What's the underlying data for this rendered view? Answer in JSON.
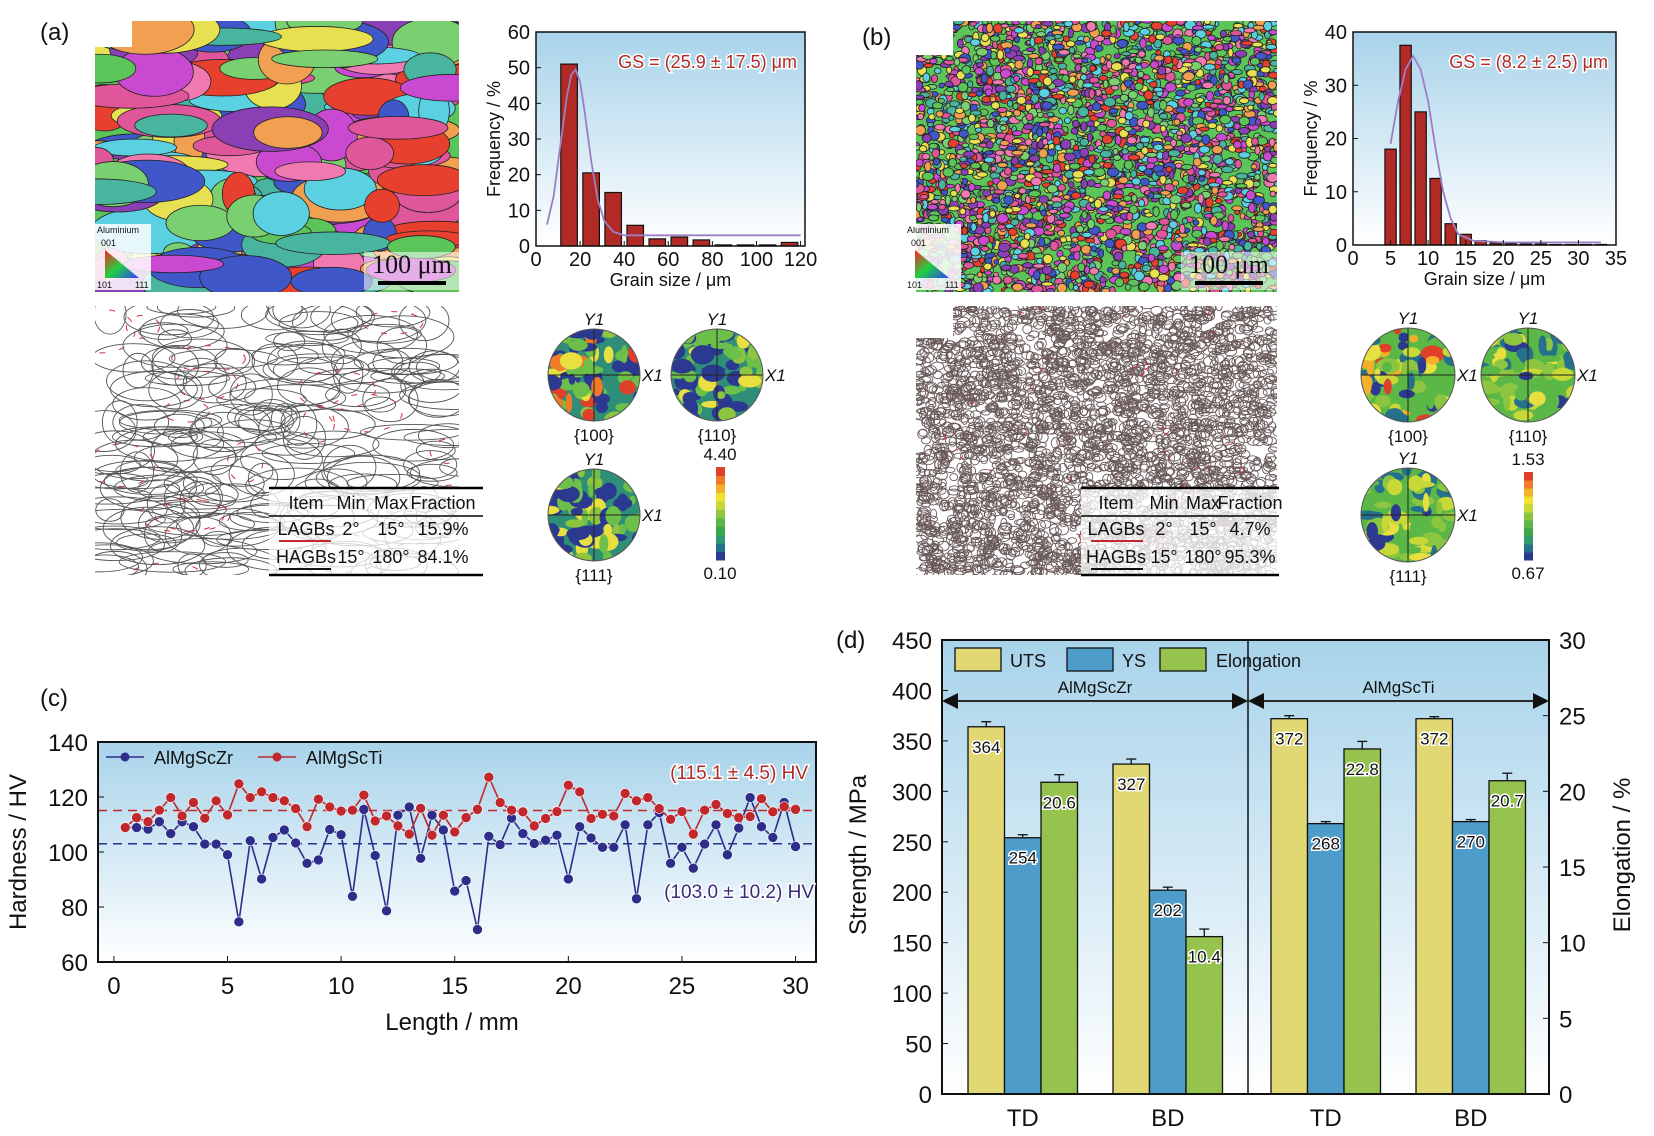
{
  "panels": {
    "a": {
      "label": "(a)",
      "ipf_legend": {
        "title": "Aluminium",
        "corners": [
          "001",
          "101",
          "111"
        ]
      },
      "scale_bar": "100 μm",
      "table": {
        "headers": [
          "Item",
          "Min",
          "Max",
          "Fraction"
        ],
        "rows": [
          [
            "LAGBs",
            "2°",
            "15°",
            "15.9%"
          ],
          [
            "HAGBs",
            "15°",
            "180°",
            "84.1%"
          ]
        ]
      },
      "pole_figures": [
        {
          "label": "{100}"
        },
        {
          "label": "{110}"
        },
        {
          "label": "{111}"
        }
      ],
      "pole_axes": {
        "y": "Y1",
        "x": "X1"
      },
      "colorbar": {
        "max": "4.40",
        "min": "0.10"
      }
    },
    "b": {
      "label": "(b)",
      "ipf_legend": {
        "title": "Aluminium",
        "corners": [
          "001",
          "101",
          "111"
        ]
      },
      "scale_bar": "100 μm",
      "table": {
        "headers": [
          "Item",
          "Min",
          "Max",
          "Fraction"
        ],
        "rows": [
          [
            "LAGBs",
            "2°",
            "15°",
            "4.7%"
          ],
          [
            "HAGBs",
            "15°",
            "180°",
            "95.3%"
          ]
        ]
      },
      "pole_figures": [
        {
          "label": "{100}"
        },
        {
          "label": "{110}"
        },
        {
          "label": "{111}"
        }
      ],
      "pole_axes": {
        "y": "Y1",
        "x": "X1"
      },
      "colorbar": {
        "max": "1.53",
        "min": "0.67"
      }
    },
    "c": {
      "label": "(c)"
    },
    "d": {
      "label": "(d)"
    }
  },
  "colors": {
    "lagb_line": "#c0282d",
    "hagb_line": "#111111",
    "bg_top": "#a8d3ea",
    "bg_bottom": "#ffffff",
    "colorbar": [
      "#2b3990",
      "#25708a",
      "#2e9a6e",
      "#3aa84a",
      "#5cb846",
      "#8cc640",
      "#c8d838",
      "#f0e030",
      "#f5b02a",
      "#f07a28",
      "#e0402a"
    ]
  },
  "chart_data": [
    {
      "type": "bar",
      "panel": "a",
      "title": "",
      "xlabel": "Grain size / μm",
      "ylabel": "Frequency / %",
      "xlim": [
        0,
        122
      ],
      "ylim": [
        0,
        60
      ],
      "xticks": [
        0,
        20,
        40,
        60,
        80,
        100,
        120
      ],
      "yticks": [
        0,
        10,
        20,
        30,
        40,
        50,
        60
      ],
      "x": [
        15,
        25,
        35,
        45,
        55,
        65,
        75,
        85,
        95,
        105,
        115
      ],
      "values": [
        51,
        20.5,
        15,
        5.8,
        2,
        2.5,
        1.7,
        0.3,
        0.3,
        0.3,
        1.0
      ],
      "bin_width": 7.5,
      "fit_curve": {
        "x": [
          5,
          8,
          11,
          14,
          16,
          18,
          20,
          22,
          25,
          28,
          31,
          35,
          40,
          60,
          80,
          100,
          120
        ],
        "y": [
          6,
          14,
          28,
          42,
          48,
          49.5,
          46,
          38,
          24,
          13,
          7,
          4,
          3,
          3,
          3,
          3,
          3
        ]
      },
      "annotation": "GS = (25.9 ± 17.5) μm",
      "bar_color": "#b22a25",
      "curve_color": "#9b7fc4",
      "annotation_color": "#b22a25"
    },
    {
      "type": "bar",
      "panel": "b",
      "title": "",
      "xlabel": "Grain size / μm",
      "ylabel": "Frequency / %",
      "xlim": [
        0,
        35
      ],
      "ylim": [
        0,
        40
      ],
      "xticks": [
        0,
        5,
        10,
        15,
        20,
        25,
        30,
        35
      ],
      "yticks": [
        0,
        10,
        20,
        30,
        40
      ],
      "x": [
        5,
        7,
        9,
        11,
        13,
        15,
        17,
        19,
        21,
        23,
        25,
        27,
        29,
        31,
        33
      ],
      "values": [
        18,
        37.5,
        25,
        12.5,
        4,
        2,
        0.8,
        0.4,
        0.3,
        0.2,
        0.2,
        0.1,
        0.1,
        0.1,
        0.1
      ],
      "bin_width": 1.5,
      "fit_curve": {
        "x": [
          5,
          6,
          7,
          8,
          9,
          10,
          11,
          12,
          13,
          14,
          16,
          20,
          25,
          33
        ],
        "y": [
          19,
          27,
          33,
          35.5,
          33,
          27,
          18,
          10,
          5,
          2,
          0.8,
          0.5,
          0.5,
          0.5
        ]
      },
      "annotation": "GS = (8.2 ± 2.5) μm",
      "bar_color": "#b22a25",
      "curve_color": "#9b7fc4",
      "annotation_color": "#b22a25"
    },
    {
      "type": "line",
      "panel": "c",
      "title": "",
      "xlabel": "Length / mm",
      "ylabel": "Hardness / HV",
      "xlim": [
        -0.7,
        30.9
      ],
      "ylim": [
        60,
        140
      ],
      "xticks": [
        0,
        5,
        10,
        15,
        20,
        25,
        30
      ],
      "yticks": [
        60,
        80,
        100,
        120,
        140
      ],
      "legend": "top-left",
      "x": [
        0.5,
        1,
        1.5,
        2,
        2.5,
        3,
        3.5,
        4,
        4.5,
        5,
        5.5,
        6,
        6.5,
        7,
        7.5,
        8,
        8.5,
        9,
        9.5,
        10,
        10.5,
        11,
        11.5,
        12,
        12.5,
        13,
        13.5,
        14,
        14.5,
        15,
        15.5,
        16,
        16.5,
        17,
        17.5,
        18,
        18.5,
        19,
        19.5,
        20,
        20.5,
        21,
        21.5,
        22,
        22.5,
        23,
        23.5,
        24,
        24.5,
        25,
        25.5,
        26,
        26.5,
        27,
        27.5,
        28,
        28.5,
        29,
        29.5,
        30
      ],
      "series": [
        {
          "name": "AlMgScZr",
          "color": "#2e2d8a",
          "values": [
            108.9,
            108.9,
            108.3,
            111,
            106.7,
            111,
            109.2,
            102.9,
            102.9,
            99,
            74.6,
            104.1,
            90.2,
            105.3,
            108,
            103.3,
            95.9,
            97.1,
            108.2,
            106.3,
            83.9,
            115.5,
            98.7,
            78.6,
            113.4,
            116.4,
            97.7,
            113.4,
            108,
            85.8,
            89.6,
            71.8,
            105.7,
            102.7,
            112.3,
            106.7,
            103.1,
            104.3,
            106.1,
            90.2,
            109.2,
            105.1,
            101.7,
            101.7,
            109.9,
            83,
            109.9,
            114.3,
            95.9,
            101.7,
            94.1,
            102.9,
            109.9,
            99,
            108.7,
            119.8,
            109.2,
            105.3,
            118,
            102
          ],
          "mean": 103.0,
          "annotation": "(103.0 ± 10.2) HV",
          "annotation_color": "#3a2a7a"
        },
        {
          "name": "AlMgScTi",
          "color": "#c0282d",
          "values": [
            108.9,
            112.5,
            111,
            115.2,
            119.8,
            113.1,
            118,
            112.3,
            118.6,
            113.5,
            124.8,
            119.8,
            121.9,
            119.8,
            118.6,
            115.8,
            109.2,
            119.2,
            116.4,
            114.9,
            115.2,
            120.7,
            111.3,
            113.1,
            109.5,
            106.5,
            115.9,
            106.1,
            113.4,
            107.3,
            112.5,
            115.5,
            127.2,
            118,
            115.2,
            114.6,
            109.5,
            112.2,
            114.7,
            124.3,
            121.9,
            112.2,
            113.7,
            113.1,
            121.3,
            118.6,
            119.8,
            115.8,
            111.9,
            114.7,
            106.5,
            115.2,
            117.3,
            114,
            112.5,
            112.9,
            119.4,
            114.6,
            116.5,
            115.5
          ],
          "mean": 115.1,
          "annotation": "(115.1 ± 4.5) HV",
          "annotation_color": "#b22a25"
        }
      ]
    },
    {
      "type": "bar",
      "panel": "d",
      "title": "",
      "ylabel": "Strength / MPa",
      "ylabel_right": "Elongation / %",
      "ylim": [
        0,
        450
      ],
      "ylim_right": [
        0,
        30
      ],
      "yticks": [
        0,
        50,
        100,
        150,
        200,
        250,
        300,
        350,
        400,
        450
      ],
      "yticks_right": [
        0,
        5,
        10,
        15,
        20,
        25,
        30
      ],
      "categories": [
        "TD",
        "BD",
        "TD",
        "BD"
      ],
      "groups": [
        {
          "name": "AlMgScZr"
        },
        {
          "name": "AlMgScTi"
        }
      ],
      "legend": "top-left",
      "series": [
        {
          "name": "UTS",
          "axis": "left",
          "color": "#e2d873",
          "values": [
            364,
            327,
            372,
            372
          ],
          "errors": [
            5,
            5,
            3,
            2
          ],
          "labels": [
            "364",
            "327",
            "372",
            "372"
          ]
        },
        {
          "name": "YS",
          "axis": "left",
          "color": "#4e9cc9",
          "values": [
            254,
            202,
            268,
            270
          ],
          "errors": [
            3,
            3,
            2,
            2
          ],
          "labels": [
            "254",
            "202",
            "268",
            "270"
          ]
        },
        {
          "name": "Elongation",
          "axis": "right",
          "color": "#96c24e",
          "values": [
            20.6,
            10.4,
            22.8,
            20.7
          ],
          "errors": [
            0.5,
            0.5,
            0.5,
            0.5
          ],
          "labels": [
            "20.6",
            "10.4",
            "22.8",
            "20.7"
          ]
        }
      ]
    }
  ]
}
